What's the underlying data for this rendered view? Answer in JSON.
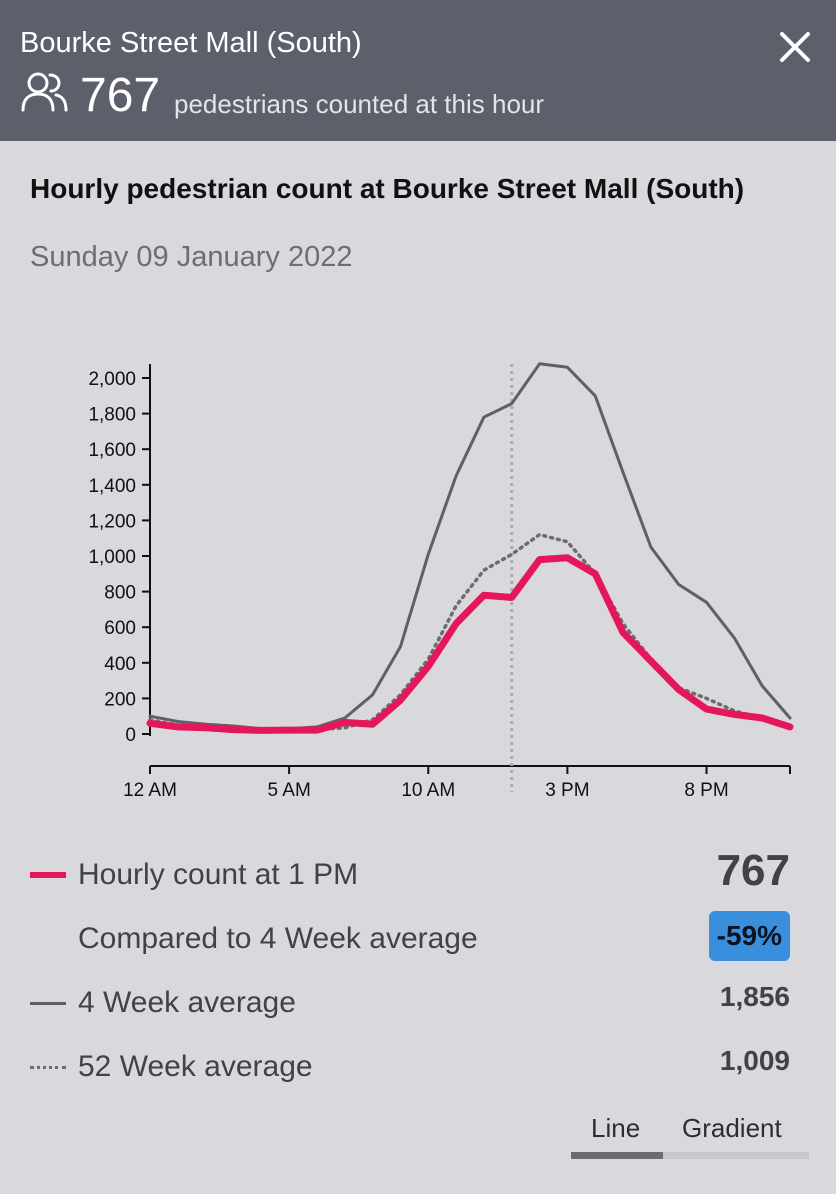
{
  "header": {
    "title": "Bourke Street Mall (South)",
    "count": "767",
    "count_label": "pedestrians counted at this hour",
    "icons": {
      "close": "close-icon",
      "people": "people-icon"
    }
  },
  "chart": {
    "title": "Hourly pedestrian count at Bourke Street Mall (South)",
    "date": "Sunday 09 January 2022"
  },
  "chart_data": {
    "type": "line",
    "x_hours": [
      0,
      1,
      2,
      3,
      4,
      5,
      6,
      7,
      8,
      9,
      10,
      11,
      12,
      13,
      14,
      15,
      16,
      17,
      18,
      19,
      20,
      21,
      22,
      23
    ],
    "x_tick_labels": [
      "12 AM",
      "5 AM",
      "10 AM",
      "3 PM",
      "8 PM"
    ],
    "x_tick_hours": [
      0,
      5,
      10,
      15,
      20
    ],
    "y_tick_labels": [
      "0",
      "200",
      "400",
      "600",
      "800",
      "1,000",
      "1,200",
      "1,400",
      "1,600",
      "1,800",
      "2,000"
    ],
    "ylim": [
      0,
      2000
    ],
    "highlight_hour": 13,
    "series": [
      {
        "name": "4 Week average",
        "style": "solid-gray",
        "color": "#5d606b",
        "values": [
          100,
          70,
          55,
          45,
          30,
          30,
          40,
          90,
          220,
          490,
          1010,
          1450,
          1780,
          1856,
          2080,
          2060,
          1900,
          1470,
          1050,
          840,
          740,
          540,
          270,
          90
        ]
      },
      {
        "name": "52 Week average",
        "style": "dotted-gray",
        "color": "#6b6d73",
        "values": [
          80,
          50,
          40,
          30,
          20,
          20,
          25,
          35,
          80,
          220,
          420,
          720,
          920,
          1009,
          1120,
          1080,
          900,
          620,
          420,
          260,
          200,
          130,
          90,
          40
        ]
      },
      {
        "name": "Hourly count",
        "style": "solid-pink",
        "color": "#e5175b",
        "values": [
          60,
          40,
          35,
          25,
          20,
          22,
          22,
          65,
          55,
          190,
          380,
          620,
          780,
          767,
          980,
          990,
          900,
          570,
          410,
          250,
          140,
          110,
          90,
          40
        ]
      }
    ]
  },
  "legend": {
    "hourly_label": "Hourly count at 1 PM",
    "hourly_value": "767",
    "compare_label": "Compared to 4 Week average",
    "compare_value": "-59%",
    "four_week_label": "4 Week average",
    "four_week_value": "1,856",
    "fifty_two_week_label": "52 Week average",
    "fifty_two_week_value": "1,009",
    "colors": {
      "hourly": "#e5175b",
      "four_week": "#5d606b",
      "fifty_two_week": "#6b6d73",
      "badge": "#3a8fdc"
    }
  },
  "view_toggle": {
    "options": [
      "Line",
      "Gradient"
    ],
    "selected": "Line"
  }
}
